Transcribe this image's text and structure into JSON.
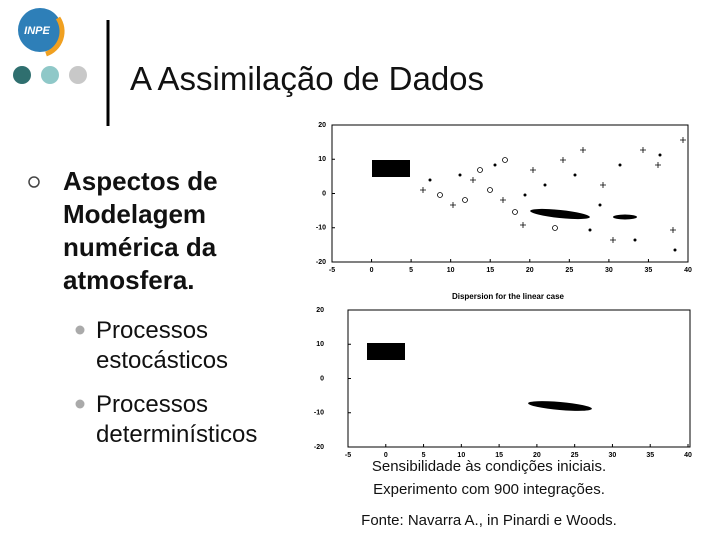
{
  "logo": "INPE",
  "header": {
    "title": "A Assimilação de Dados"
  },
  "bullet": {
    "text": "Aspectos de Modelagem numérica da atmosfera.",
    "sub": [
      "Processos estocásticos",
      "Processos determinísticos"
    ]
  },
  "figures": [
    {
      "xticks": [
        -5,
        0,
        5,
        10,
        15,
        20,
        25,
        30,
        35,
        40
      ],
      "yticks": [
        20,
        10,
        0,
        -10,
        -20
      ],
      "title": "Dispersion for the linear case"
    },
    {
      "xticks": [
        -5,
        0,
        5,
        10,
        15,
        20,
        25,
        30,
        35,
        40
      ],
      "yticks": [
        20,
        10,
        0,
        -10,
        -20
      ]
    }
  ],
  "caption": [
    "Sensibilidade às condições iniciais.",
    "Experimento com 900 integrações."
  ],
  "source": "Fonte: Navarra A., in Pinardi e Woods."
}
